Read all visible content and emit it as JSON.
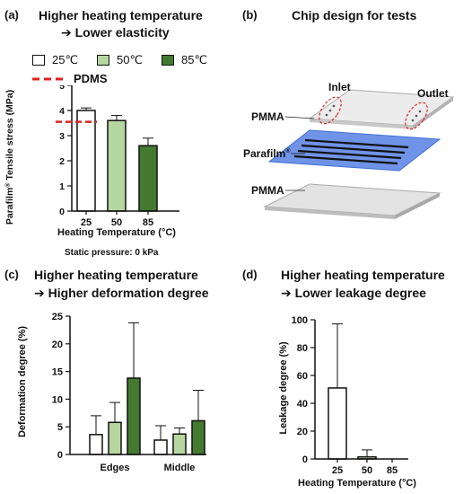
{
  "panels": {
    "a": {
      "letter": "(a)",
      "title_line1": "Higher heating temperature",
      "title_line2": "➔ Lower  elasticity",
      "note": "Static pressure: 0 kPa",
      "legend": [
        {
          "label": "25℃",
          "color": "#ffffff"
        },
        {
          "label": "50℃",
          "color": "#b5d79f"
        },
        {
          "label": "85℃",
          "color": "#437a2f"
        }
      ],
      "pdms_label": "PDMS"
    },
    "b": {
      "letter": "(b)",
      "title": "Chip design for tests",
      "labels": {
        "inlet": "Inlet",
        "outlet": "Outlet",
        "pmma_top": "PMMA",
        "parafilm": "Parafilm",
        "parafilm_sup": "®",
        "pmma_bottom": "PMMA"
      }
    },
    "c": {
      "letter": "(c)",
      "title_line1": "Higher heating temperature",
      "title_line2": "➔ Higher deformation  degree"
    },
    "d": {
      "letter": "(d)",
      "title_line1": "Higher heating temperature",
      "title_line2": "➔ Lower leakage degree"
    }
  },
  "colors": {
    "t25": "#ffffff",
    "t50": "#b5d79f",
    "t85": "#437a2f",
    "pdms": "#e02020",
    "parafilm_layer": "#3f6fd8",
    "pmma_layer": "#d4d4d4",
    "inlet_circle": "#e02020"
  },
  "chart_data": [
    {
      "id": "a",
      "type": "bar",
      "categories": [
        "25",
        "50",
        "85"
      ],
      "values": [
        4.0,
        3.6,
        2.6
      ],
      "errors": [
        0.1,
        0.2,
        0.3
      ],
      "ylabel_prefix": "Parafilm",
      "ylabel_sup": "®",
      "ylabel_suffix": " Tensile stress (MPa)",
      "xlabel": "Heating Temperature (°C)",
      "ylim": [
        0,
        5
      ],
      "yticks": [
        0,
        1,
        2,
        3,
        4,
        5
      ],
      "reference_line": {
        "name": "PDMS",
        "value": 3.55
      }
    },
    {
      "id": "c",
      "type": "bar",
      "categories": [
        "Edges",
        "Middle"
      ],
      "series": [
        {
          "name": "25℃",
          "values": [
            3.6,
            2.6
          ],
          "errors": [
            3.4,
            2.6
          ]
        },
        {
          "name": "50℃",
          "values": [
            5.8,
            3.7
          ],
          "errors": [
            3.6,
            1.1
          ]
        },
        {
          "name": "85℃",
          "values": [
            13.8,
            6.1
          ],
          "errors": [
            10.0,
            5.5
          ]
        }
      ],
      "ylabel": "Deformation degree (%)",
      "ylim": [
        0,
        25
      ],
      "yticks": [
        0,
        5,
        10,
        15,
        20,
        25
      ]
    },
    {
      "id": "d",
      "type": "bar",
      "categories": [
        "25",
        "50",
        "85"
      ],
      "values": [
        51,
        1.5,
        0
      ],
      "errors": [
        46,
        5,
        0
      ],
      "ylabel": "Leakage degree (%)",
      "xlabel": "Heating Temperature (°C)",
      "ylim": [
        0,
        100
      ],
      "yticks": [
        0,
        20,
        40,
        60,
        80,
        100
      ]
    }
  ]
}
